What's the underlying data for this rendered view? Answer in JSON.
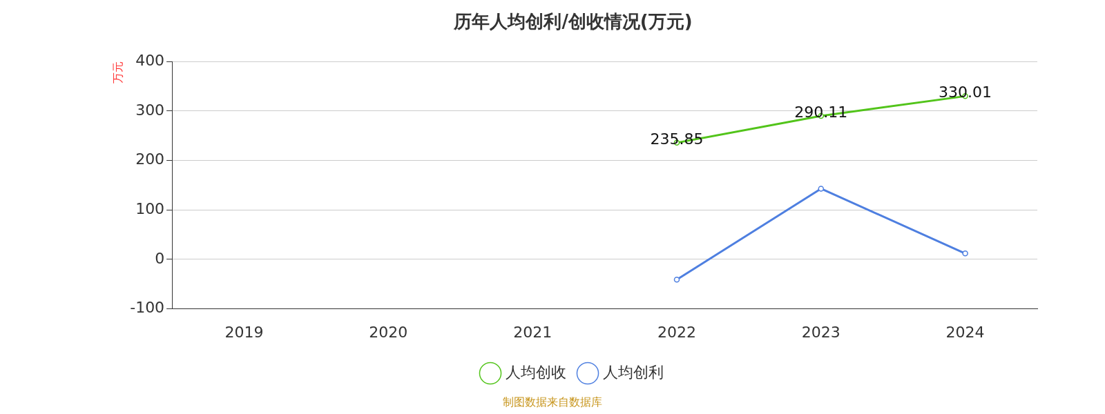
{
  "chart_data": {
    "type": "line",
    "title": "历年人均创利/创收情况(万元)",
    "ylabel": "万元",
    "categories": [
      "2019",
      "2020",
      "2021",
      "2022",
      "2023",
      "2024"
    ],
    "series": [
      {
        "name": "人均创收",
        "color": "#52c41a",
        "values": [
          null,
          null,
          null,
          235.85,
          290.11,
          330.01
        ],
        "value_labels": [
          null,
          null,
          null,
          "235.85",
          "290.11",
          "330.01"
        ]
      },
      {
        "name": "人均创利",
        "color": "#4e7fe0",
        "values": [
          null,
          null,
          null,
          -41,
          143,
          12
        ]
      }
    ],
    "ylim": [
      -100,
      400
    ],
    "yticks": [
      -100,
      0,
      100,
      200,
      300,
      400
    ],
    "grid": "y",
    "legend": "bottom",
    "marker": "circle",
    "line_style": "solid",
    "annotations": [
      "制图数据来自数据库"
    ]
  }
}
